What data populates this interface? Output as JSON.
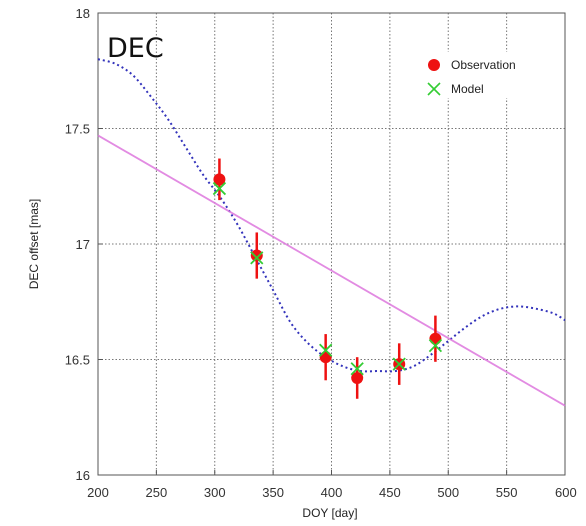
{
  "chart_data": {
    "type": "scatter",
    "title": "DEC",
    "xlabel": "DOY [day]",
    "ylabel": "DEC offset [mas]",
    "xlim": [
      200,
      600
    ],
    "ylim": [
      16,
      18
    ],
    "x_ticks": [
      200,
      250,
      300,
      350,
      400,
      450,
      500,
      550,
      600
    ],
    "x_tick_labels": [
      "200",
      "250",
      "300",
      "350",
      "400",
      "450",
      "500",
      "550",
      "600"
    ],
    "y_ticks": [
      16,
      16.5,
      17,
      17.5,
      18
    ],
    "y_tick_labels": [
      "16",
      "16.5",
      "17",
      "17.5",
      "18"
    ],
    "grid": true,
    "legend_position": "top-right",
    "legend": [
      "Observation",
      "Model"
    ],
    "series": [
      {
        "name": "Observation",
        "marker": "filled-circle",
        "color": "#ee1111",
        "x": [
          304,
          336,
          395,
          422,
          458,
          489
        ],
        "y": [
          17.28,
          16.95,
          16.51,
          16.42,
          16.48,
          16.59
        ],
        "yerr": [
          0.09,
          0.1,
          0.1,
          0.09,
          0.09,
          0.1
        ]
      },
      {
        "name": "Model",
        "marker": "x",
        "color": "#33cc33",
        "x": [
          304,
          336,
          395,
          422,
          458,
          489
        ],
        "y": [
          17.24,
          16.94,
          16.54,
          16.46,
          16.48,
          16.56
        ]
      }
    ],
    "lines": [
      {
        "style": "dotted",
        "color": "#3333bb",
        "x": [
          200,
          215,
          230,
          245,
          260,
          275,
          290,
          305,
          320,
          335,
          350,
          365,
          380,
          395,
          410,
          425,
          440,
          455,
          470,
          485,
          500,
          515,
          530,
          545,
          560,
          575,
          590,
          600
        ],
        "y": [
          17.8,
          17.78,
          17.73,
          17.64,
          17.54,
          17.42,
          17.3,
          17.2,
          17.08,
          16.94,
          16.8,
          16.66,
          16.57,
          16.51,
          16.47,
          16.45,
          16.45,
          16.45,
          16.47,
          16.52,
          16.58,
          16.64,
          16.69,
          16.72,
          16.73,
          16.72,
          16.7,
          16.67
        ]
      },
      {
        "style": "solid",
        "color": "#dd77dd",
        "x": [
          200,
          600
        ],
        "y": [
          17.47,
          16.3
        ]
      }
    ]
  }
}
